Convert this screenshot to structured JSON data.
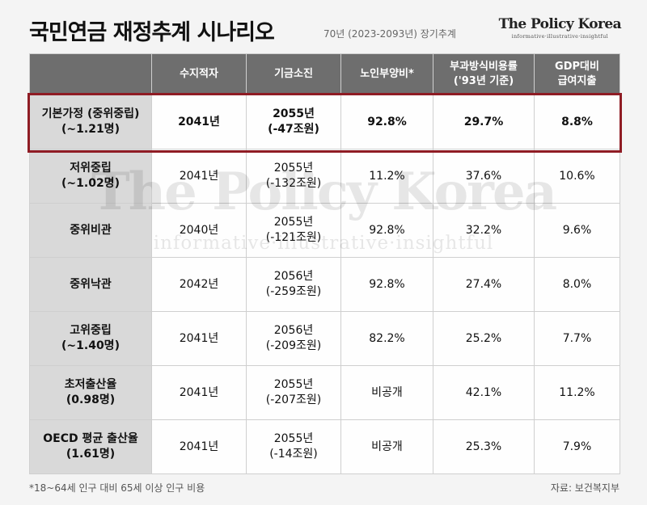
{
  "header": {
    "title": "국민연금 재정추계 시나리오",
    "subtitle": "70년 (2023-2093년) 장기추계",
    "brand_name": "The Policy Korea",
    "brand_tagline": "informative·illustrative·insightful"
  },
  "watermark": {
    "name": "The Policy Korea",
    "tagline": "informative·illustrative·insightful"
  },
  "table": {
    "columns": [
      {
        "line1": "",
        "line2": ""
      },
      {
        "line1": "수지적자",
        "line2": ""
      },
      {
        "line1": "기금소진",
        "line2": ""
      },
      {
        "line1": "노인부양비*",
        "line2": ""
      },
      {
        "line1": "부과방식비용률",
        "line2": "('93년 기준)"
      },
      {
        "line1": "GDP대비",
        "line2": "급여지출"
      }
    ],
    "rows": [
      {
        "name1": "기본가정 (중위중립)",
        "name2": "(~1.21명)",
        "deficit": "2041년",
        "deplete1": "2055년",
        "deplete2": "(-47조원)",
        "dependency": "92.8%",
        "payg": "29.7%",
        "gdp": "8.8%"
      },
      {
        "name1": "저위중립",
        "name2": "(~1.02명)",
        "deficit": "2041년",
        "deplete1": "2055년",
        "deplete2": "(-132조원)",
        "dependency": "11.2%",
        "payg": "37.6%",
        "gdp": "10.6%"
      },
      {
        "name1": "중위비관",
        "name2": "",
        "deficit": "2040년",
        "deplete1": "2055년",
        "deplete2": "(-121조원)",
        "dependency": "92.8%",
        "payg": "32.2%",
        "gdp": "9.6%"
      },
      {
        "name1": "중위낙관",
        "name2": "",
        "deficit": "2042년",
        "deplete1": "2056년",
        "deplete2": "(-259조원)",
        "dependency": "92.8%",
        "payg": "27.4%",
        "gdp": "8.0%"
      },
      {
        "name1": "고위중립",
        "name2": "(~1.40명)",
        "deficit": "2041년",
        "deplete1": "2056년",
        "deplete2": "(-209조원)",
        "dependency": "82.2%",
        "payg": "25.2%",
        "gdp": "7.7%"
      },
      {
        "name1": "초저출산율",
        "name2": "(0.98명)",
        "deficit": "2041년",
        "deplete1": "2055년",
        "deplete2": "(-207조원)",
        "dependency": "비공개",
        "payg": "42.1%",
        "gdp": "11.2%"
      },
      {
        "name1": "OECD 평균 출산율",
        "name2": "(1.61명)",
        "deficit": "2041년",
        "deplete1": "2055년",
        "deplete2": "(-14조원)",
        "dependency": "비공개",
        "payg": "25.3%",
        "gdp": "7.9%"
      }
    ]
  },
  "footer": {
    "note": "*18~64세 인구 대비 65세 이상 인구 비용",
    "source": "자료: 보건복지부"
  },
  "colors": {
    "header_bg": "#6e6e6e",
    "row_head_bg": "#d9d9d9",
    "highlight_border": "#8f1c24"
  }
}
